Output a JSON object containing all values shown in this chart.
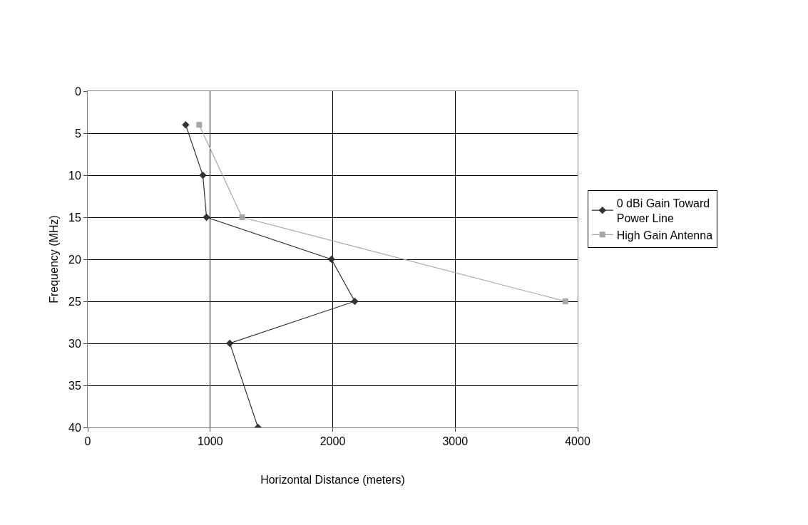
{
  "chart_data": {
    "type": "line",
    "xlabel": "Horizontal Distance (meters)",
    "ylabel": "Frequency (MHz)",
    "xlim": [
      0,
      4000
    ],
    "xticks": [
      0,
      1000,
      2000,
      3000,
      4000
    ],
    "ylim": [
      40,
      0
    ],
    "yticks": [
      0,
      5,
      10,
      15,
      20,
      25,
      30,
      35,
      40
    ],
    "grid": true,
    "legend": "right",
    "line_style": "solid",
    "series": [
      {
        "name": "0 dBi Gain Toward Power Line",
        "color": "#333333",
        "marker": "diamond",
        "x": [
          800,
          940,
          970,
          1990,
          2180,
          1160,
          1390
        ],
        "values": [
          4,
          10,
          15,
          20,
          25,
          30,
          40
        ]
      },
      {
        "name": "High Gain Antenna",
        "color": "#a6a6a6",
        "marker": "square",
        "x": [
          910,
          1260,
          3900
        ],
        "values": [
          4,
          15,
          25
        ]
      }
    ]
  }
}
